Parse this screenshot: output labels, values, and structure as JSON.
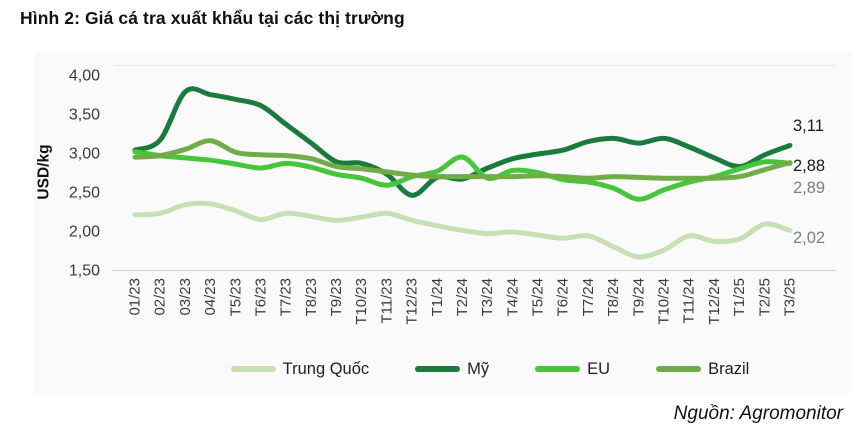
{
  "header": {
    "title": "Hình 2: Giá cá tra xuất khẩu tại các thị trường"
  },
  "source": "Nguồn: Agromonitor",
  "chart_data": {
    "type": "line",
    "title": "Hình 2: Giá cá tra xuất khẩu tại các thị trường",
    "xlabel": "",
    "ylabel": "USD/kg",
    "ylim": [
      1.5,
      4.0
    ],
    "y_ticks": [
      "4,00",
      "3,50",
      "3,00",
      "2,50",
      "2,00",
      "1,50"
    ],
    "grid": false,
    "legend_position": "bottom",
    "line_style": "smooth",
    "categories": [
      "01/23",
      "02/23",
      "03/23",
      "04/23",
      "T5/23",
      "T6/23",
      "T7/23",
      "T8/23",
      "T9/23",
      "T10/23",
      "T11/23",
      "T12/23",
      "T1/24",
      "T2/24",
      "T3/24",
      "T4/24",
      "T5/24",
      "T6/24",
      "T7/24",
      "T8/24",
      "T9/24",
      "T10/24",
      "T11/24",
      "T12/24",
      "T1/25",
      "T2/25",
      "T3/25"
    ],
    "series": [
      {
        "name": "Trung Quốc",
        "color": "#c6e0b4",
        "values": [
          2.22,
          2.24,
          2.35,
          2.36,
          2.27,
          2.16,
          2.24,
          2.2,
          2.15,
          2.19,
          2.24,
          2.15,
          2.08,
          2.02,
          1.98,
          2.0,
          1.96,
          1.92,
          1.95,
          1.81,
          1.68,
          1.77,
          1.95,
          1.88,
          1.91,
          2.1,
          2.02
        ]
      },
      {
        "name": "Mỹ",
        "color": "#1b7a3d",
        "values": [
          3.05,
          3.18,
          3.8,
          3.76,
          3.7,
          3.62,
          3.38,
          3.14,
          2.9,
          2.88,
          2.74,
          2.47,
          2.7,
          2.68,
          2.82,
          2.94,
          3.0,
          3.05,
          3.16,
          3.2,
          3.14,
          3.2,
          3.09,
          2.95,
          2.84,
          2.99,
          3.11
        ]
      },
      {
        "name": "EU",
        "color": "#46c63b",
        "values": [
          3.03,
          2.98,
          2.95,
          2.92,
          2.87,
          2.82,
          2.88,
          2.83,
          2.74,
          2.69,
          2.6,
          2.71,
          2.78,
          2.96,
          2.69,
          2.79,
          2.76,
          2.67,
          2.64,
          2.56,
          2.42,
          2.54,
          2.64,
          2.71,
          2.81,
          2.9,
          2.88
        ]
      },
      {
        "name": "Brazil",
        "color": "#70ad47",
        "values": [
          2.96,
          2.98,
          3.06,
          3.17,
          3.02,
          2.99,
          2.98,
          2.94,
          2.84,
          2.81,
          2.77,
          2.73,
          2.71,
          2.71,
          2.71,
          2.71,
          2.72,
          2.71,
          2.69,
          2.71,
          2.7,
          2.69,
          2.69,
          2.69,
          2.71,
          2.8,
          2.89
        ]
      }
    ],
    "end_labels": [
      {
        "text": "3,11",
        "series": "Mỹ",
        "color": "#1a1a1a",
        "y": 126
      },
      {
        "text": "2,88",
        "series": "EU",
        "color": "#1a1a1a",
        "y": 166
      },
      {
        "text": "2,89",
        "series": "Brazil",
        "color": "#7f7f7f",
        "y": 188
      },
      {
        "text": "2,02",
        "series": "Trung Quốc",
        "color": "#7f7f7f",
        "y": 238
      }
    ]
  }
}
